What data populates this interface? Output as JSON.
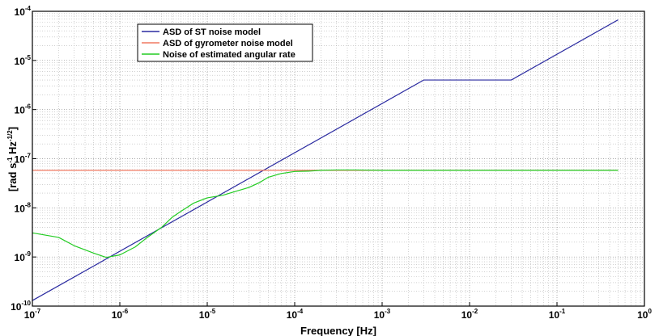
{
  "chart_data": {
    "type": "line",
    "xscale": "log",
    "yscale": "log",
    "xlim": [
      1e-07,
      1
    ],
    "ylim": [
      1e-10,
      0.0001
    ],
    "grid": true,
    "legend_position": "top-left",
    "xlabel": {
      "text": "Frequency  [Hz]"
    },
    "ylabel": {
      "main": "[rad s",
      "sup1": "-1",
      "mid": " Hz",
      "sup2": "-1/2",
      "end": "]"
    },
    "x_ticks": [
      {
        "base": "10",
        "exp": "-7",
        "value": 1e-07
      },
      {
        "base": "10",
        "exp": "-6",
        "value": 1e-06
      },
      {
        "base": "10",
        "exp": "-5",
        "value": 1e-05
      },
      {
        "base": "10",
        "exp": "-4",
        "value": 0.0001
      },
      {
        "base": "10",
        "exp": "-3",
        "value": 0.001
      },
      {
        "base": "10",
        "exp": "-2",
        "value": 0.01
      },
      {
        "base": "10",
        "exp": "-1",
        "value": 0.1
      },
      {
        "base": "10",
        "exp": "0",
        "value": 1
      }
    ],
    "y_ticks": [
      {
        "base": "10",
        "exp": "-10",
        "value": 1e-10
      },
      {
        "base": "10",
        "exp": "-9",
        "value": 1e-09
      },
      {
        "base": "10",
        "exp": "-8",
        "value": 1e-08
      },
      {
        "base": "10",
        "exp": "-7",
        "value": 1e-07
      },
      {
        "base": "10",
        "exp": "-6",
        "value": 1e-06
      },
      {
        "base": "10",
        "exp": "-5",
        "value": 1e-05
      },
      {
        "base": "10",
        "exp": "-4",
        "value": 0.0001
      }
    ],
    "series": [
      {
        "name": "ASD of ST noise model",
        "color": "#2a2aa0",
        "x": [
          1e-07,
          0.003,
          0.03,
          0.5
        ],
        "y": [
          1.3e-10,
          4e-06,
          4e-06,
          6.7e-05
        ]
      },
      {
        "name": "ASD of gyrometer noise model",
        "color": "#f07860",
        "x": [
          1e-07,
          0.5
        ],
        "y": [
          5.8e-08,
          5.8e-08
        ]
      },
      {
        "name": "Noise of estimated angular rate",
        "color": "#22cc22",
        "x": [
          1e-07,
          2e-07,
          3e-07,
          5e-07,
          7e-07,
          1e-06,
          1.5e-06,
          2e-06,
          3e-06,
          4e-06,
          5e-06,
          7e-06,
          1e-05,
          1.5e-05,
          2e-05,
          3e-05,
          4e-05,
          5e-05,
          7e-05,
          0.0001,
          0.00015,
          0.0002,
          0.0003,
          0.0005,
          0.001,
          0.01,
          0.1,
          0.5
        ],
        "y": [
          3.1e-09,
          2.5e-09,
          1.7e-09,
          1.2e-09,
          9.8e-10,
          1.1e-09,
          1.6e-09,
          2.4e-09,
          4e-09,
          6.5e-09,
          8.5e-09,
          1.25e-08,
          1.6e-08,
          1.8e-08,
          2.1e-08,
          2.6e-08,
          3.3e-08,
          4.2e-08,
          5e-08,
          5.5e-08,
          5.6e-08,
          5.8e-08,
          5.9e-08,
          5.9e-08,
          5.8e-08,
          5.8e-08,
          5.8e-08,
          5.8e-08
        ]
      }
    ]
  }
}
